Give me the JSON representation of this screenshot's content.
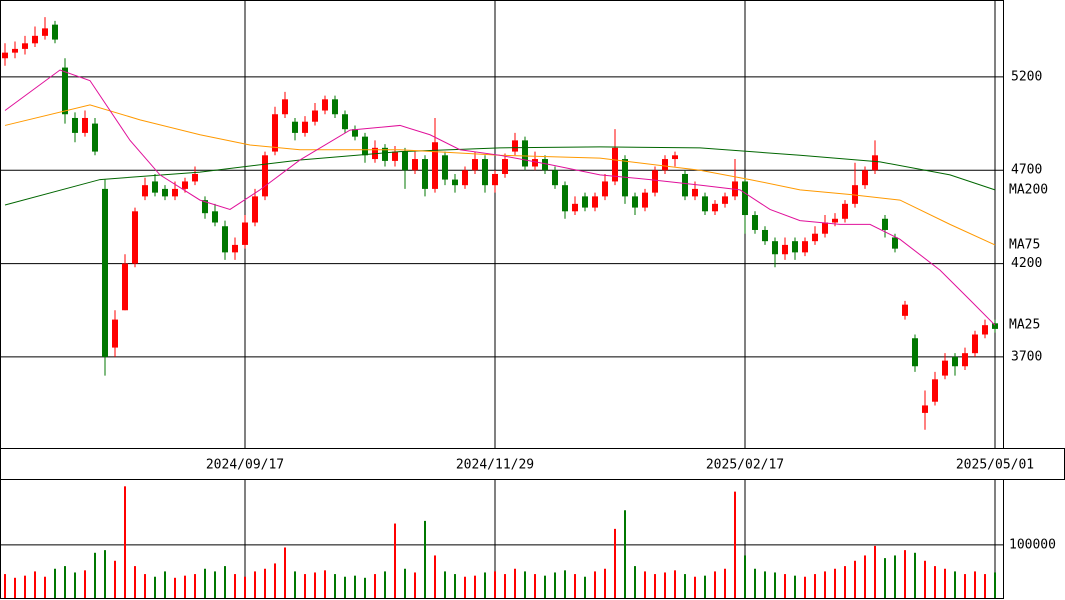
{
  "chart_data": [
    {
      "type": "candlestick",
      "categories": [
        null,
        null,
        null,
        null,
        null,
        null,
        null,
        null,
        null,
        null,
        null,
        null,
        null,
        null,
        null,
        null,
        null,
        null,
        null,
        null,
        null,
        null,
        null,
        null,
        "2024/09/17",
        null,
        null,
        null,
        null,
        null,
        null,
        null,
        null,
        null,
        null,
        null,
        null,
        null,
        null,
        null,
        null,
        null,
        null,
        null,
        null,
        null,
        null,
        null,
        null,
        "2024/11/29",
        null,
        null,
        null,
        null,
        null,
        null,
        null,
        null,
        null,
        null,
        null,
        null,
        null,
        null,
        null,
        null,
        null,
        null,
        null,
        null,
        null,
        null,
        null,
        null,
        "2025/02/17",
        null,
        null,
        null,
        null,
        null,
        null,
        null,
        null,
        null,
        null,
        null,
        null,
        null,
        null,
        null,
        null,
        null,
        null,
        null,
        null,
        null,
        null,
        null,
        null,
        "2025/05/01"
      ],
      "candles": [
        [
          5300,
          5380,
          5260,
          5330
        ],
        [
          5330,
          5390,
          5300,
          5350
        ],
        [
          5350,
          5420,
          5320,
          5380
        ],
        [
          5380,
          5470,
          5360,
          5420
        ],
        [
          5420,
          5520,
          5400,
          5460
        ],
        [
          5480,
          5500,
          5380,
          5400
        ],
        [
          5250,
          5300,
          4950,
          5000
        ],
        [
          4980,
          5010,
          4850,
          4900
        ],
        [
          4900,
          5020,
          4880,
          4980
        ],
        [
          4950,
          4980,
          4780,
          4800
        ],
        [
          4600,
          4650,
          3600,
          3700
        ],
        [
          3750,
          3950,
          3700,
          3900
        ],
        [
          3950,
          4250,
          3950,
          4200
        ],
        [
          4200,
          4500,
          4180,
          4480
        ],
        [
          4560,
          4660,
          4540,
          4620
        ],
        [
          4640,
          4680,
          4560,
          4580
        ],
        [
          4600,
          4620,
          4540,
          4560
        ],
        [
          4560,
          4640,
          4540,
          4600
        ],
        [
          4600,
          4660,
          4580,
          4640
        ],
        [
          4640,
          4720,
          4620,
          4680
        ],
        [
          4540,
          4560,
          4440,
          4470
        ],
        [
          4480,
          4520,
          4400,
          4420
        ],
        [
          4400,
          4430,
          4220,
          4260
        ],
        [
          4260,
          4340,
          4220,
          4300
        ],
        [
          4300,
          4460,
          4280,
          4420
        ],
        [
          4420,
          4600,
          4400,
          4560
        ],
        [
          4560,
          4800,
          4540,
          4780
        ],
        [
          4800,
          5040,
          4780,
          5000
        ],
        [
          5000,
          5120,
          4980,
          5080
        ],
        [
          4960,
          4980,
          4860,
          4900
        ],
        [
          4900,
          4990,
          4880,
          4960
        ],
        [
          4960,
          5060,
          4940,
          5020
        ],
        [
          5020,
          5100,
          5000,
          5080
        ],
        [
          5080,
          5100,
          4980,
          5000
        ],
        [
          5000,
          5020,
          4900,
          4920
        ],
        [
          4920,
          4940,
          4860,
          4880
        ],
        [
          4880,
          4900,
          4740,
          4780
        ],
        [
          4760,
          4860,
          4740,
          4820
        ],
        [
          4820,
          4840,
          4720,
          4750
        ],
        [
          4750,
          4830,
          4720,
          4800
        ],
        [
          4800,
          4820,
          4600,
          4700
        ],
        [
          4700,
          4800,
          4680,
          4760
        ],
        [
          4760,
          4780,
          4560,
          4600
        ],
        [
          4600,
          4980,
          4580,
          4850
        ],
        [
          4780,
          4800,
          4620,
          4650
        ],
        [
          4650,
          4680,
          4580,
          4620
        ],
        [
          4620,
          4720,
          4600,
          4700
        ],
        [
          4700,
          4800,
          4680,
          4760
        ],
        [
          4760,
          4780,
          4580,
          4620
        ],
        [
          4620,
          4700,
          4580,
          4680
        ],
        [
          4680,
          4790,
          4660,
          4760
        ],
        [
          4800,
          4900,
          4780,
          4860
        ],
        [
          4860,
          4880,
          4700,
          4720
        ],
        [
          4720,
          4800,
          4700,
          4760
        ],
        [
          4760,
          4780,
          4680,
          4700
        ],
        [
          4700,
          4720,
          4600,
          4620
        ],
        [
          4620,
          4640,
          4440,
          4480
        ],
        [
          4480,
          4560,
          4460,
          4520
        ],
        [
          4560,
          4580,
          4480,
          4500
        ],
        [
          4500,
          4580,
          4480,
          4560
        ],
        [
          4560,
          4680,
          4540,
          4640
        ],
        [
          4640,
          4920,
          4620,
          4820
        ],
        [
          4760,
          4780,
          4520,
          4560
        ],
        [
          4560,
          4580,
          4460,
          4500
        ],
        [
          4500,
          4600,
          4480,
          4580
        ],
        [
          4580,
          4720,
          4560,
          4700
        ],
        [
          4700,
          4780,
          4680,
          4760
        ],
        [
          4760,
          4800,
          4720,
          4780
        ],
        [
          4680,
          4700,
          4540,
          4560
        ],
        [
          4560,
          4640,
          4540,
          4600
        ],
        [
          4560,
          4580,
          4460,
          4480
        ],
        [
          4480,
          4540,
          4460,
          4520
        ],
        [
          4520,
          4580,
          4500,
          4560
        ],
        [
          4560,
          4760,
          4540,
          4640
        ],
        [
          4640,
          4660,
          4360,
          4460
        ],
        [
          4460,
          4480,
          4360,
          4380
        ],
        [
          4380,
          4400,
          4300,
          4320
        ],
        [
          4320,
          4340,
          4180,
          4250
        ],
        [
          4250,
          4340,
          4220,
          4300
        ],
        [
          4320,
          4340,
          4220,
          4260
        ],
        [
          4260,
          4340,
          4240,
          4320
        ],
        [
          4320,
          4400,
          4300,
          4360
        ],
        [
          4360,
          4460,
          4340,
          4420
        ],
        [
          4420,
          4470,
          4400,
          4440
        ],
        [
          4440,
          4540,
          4420,
          4520
        ],
        [
          4520,
          4740,
          4500,
          4620
        ],
        [
          4620,
          4720,
          4600,
          4700
        ],
        [
          4700,
          4860,
          4680,
          4780
        ],
        [
          4440,
          4460,
          4340,
          4380
        ],
        [
          4340,
          4360,
          4260,
          4280
        ],
        [
          3920,
          4000,
          3900,
          3980
        ],
        [
          3800,
          3820,
          3620,
          3650
        ],
        [
          3400,
          3520,
          3310,
          3440
        ],
        [
          3460,
          3620,
          3440,
          3580
        ],
        [
          3600,
          3720,
          3580,
          3680
        ],
        [
          3700,
          3720,
          3600,
          3650
        ],
        [
          3650,
          3750,
          3630,
          3720
        ],
        [
          3720,
          3840,
          3700,
          3820
        ],
        [
          3820,
          3900,
          3800,
          3870
        ],
        [
          3880,
          3900,
          3830,
          3850
        ]
      ],
      "up_color": "#ff0000",
      "down_color": "#007700",
      "ylim": [
        3212,
        5612
      ],
      "yticks": [
        3700,
        4200,
        4700,
        5200
      ],
      "grid": true,
      "series": [
        {
          "name": "MA200",
          "color": "#006600",
          "x": [
            0,
            9.5,
            19.5,
            29.5,
            39.5,
            49.5,
            59.5,
            69.5,
            79.5,
            87.5,
            94.5,
            99
          ],
          "values": [
            4514,
            4650,
            4690,
            4755,
            4800,
            4820,
            4825,
            4820,
            4780,
            4745,
            4675,
            4595
          ]
        },
        {
          "name": "MA75",
          "color": "#ff9900",
          "x": [
            0,
            8.5,
            13.5,
            19.5,
            24.5,
            29.5,
            39.5,
            49.5,
            59.5,
            69.5,
            74.5,
            79.5,
            84.5,
            89.5,
            94.5,
            99
          ],
          "values": [
            4940,
            5050,
            4970,
            4890,
            4835,
            4810,
            4810,
            4780,
            4765,
            4700,
            4650,
            4595,
            4570,
            4540,
            4410,
            4300
          ]
        },
        {
          "name": "MA25",
          "color": "#e0109a",
          "x": [
            0,
            5.5,
            8.5,
            12.5,
            15.5,
            19.5,
            22.5,
            25.5,
            29.5,
            34.5,
            39.5,
            42.5,
            45.5,
            49.5,
            54.5,
            59.5,
            64.5,
            69.5,
            73.5,
            76.5,
            79.5,
            83.5,
            86.5,
            89.5,
            93.5,
            96.5,
            99
          ],
          "values": [
            5020,
            5237,
            5180,
            4860,
            4675,
            4540,
            4490,
            4595,
            4755,
            4915,
            4940,
            4890,
            4810,
            4780,
            4730,
            4675,
            4650,
            4620,
            4595,
            4490,
            4430,
            4410,
            4410,
            4330,
            4165,
            4005,
            3870
          ]
        }
      ]
    },
    {
      "type": "bar",
      "values": [
        45000,
        38000,
        42000,
        50000,
        40000,
        55000,
        60000,
        48000,
        52000,
        85000,
        90000,
        70000,
        210000,
        60000,
        45000,
        40000,
        50000,
        38000,
        42000,
        45000,
        55000,
        50000,
        60000,
        45000,
        40000,
        50000,
        55000,
        65000,
        95000,
        50000,
        45000,
        48000,
        52000,
        45000,
        40000,
        42000,
        38000,
        45000,
        50000,
        140000,
        55000,
        48000,
        145000,
        80000,
        50000,
        45000,
        40000,
        42000,
        48000,
        50000,
        45000,
        55000,
        50000,
        45000,
        42000,
        48000,
        52000,
        45000,
        40000,
        50000,
        55000,
        130000,
        165000,
        60000,
        50000,
        45000,
        48000,
        52000,
        45000,
        40000,
        42000,
        50000,
        55000,
        200000,
        80000,
        55000,
        50000,
        48000,
        45000,
        42000,
        40000,
        45000,
        50000,
        55000,
        60000,
        70000,
        80000,
        98000,
        75000,
        80000,
        90000,
        85000,
        70000,
        60000,
        55000,
        50000,
        45000,
        50000,
        45000,
        48000
      ],
      "ylim": [
        0,
        220000
      ],
      "yticks": [
        100000
      ],
      "grid": true
    }
  ]
}
